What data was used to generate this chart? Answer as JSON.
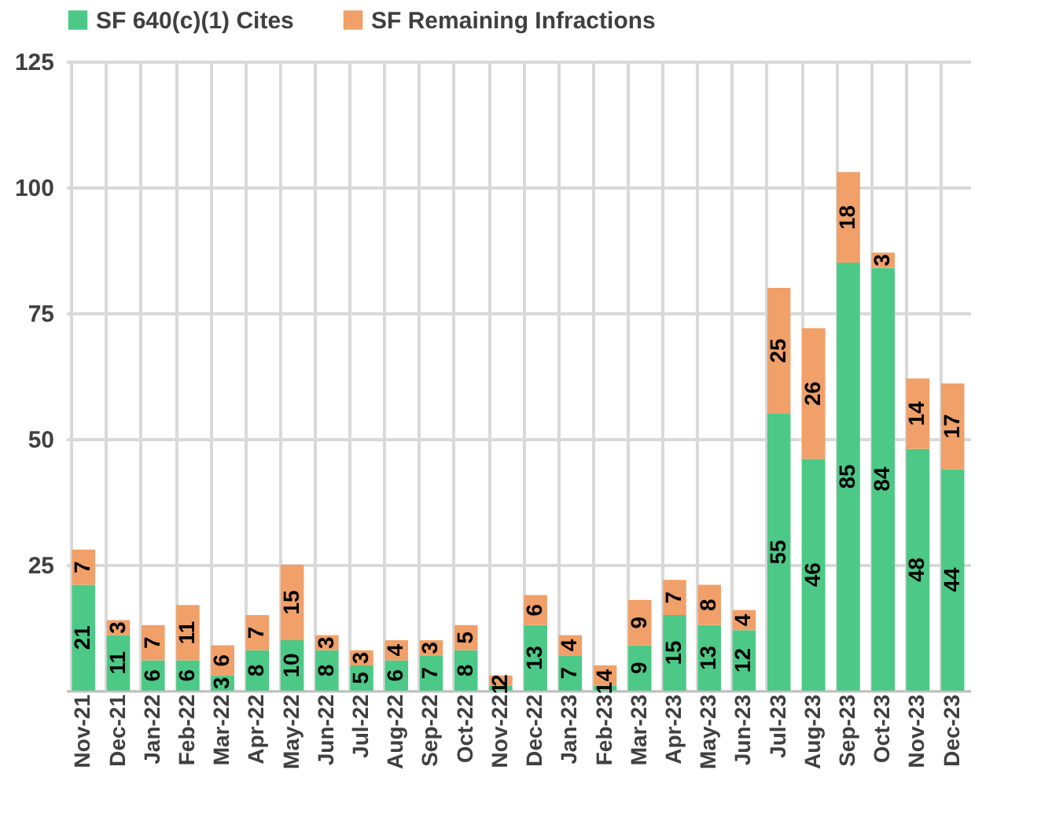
{
  "chart_data": {
    "type": "bar",
    "stacked": true,
    "categories": [
      "Nov-21",
      "Dec-21",
      "Jan-22",
      "Feb-22",
      "Mar-22",
      "Apr-22",
      "May-22",
      "Jun-22",
      "Jul-22",
      "Aug-22",
      "Sep-22",
      "Oct-22",
      "Nov-22",
      "Dec-22",
      "Jan-23",
      "Feb-23",
      "Mar-23",
      "Apr-23",
      "May-23",
      "Jun-23",
      "Jul-23",
      "Aug-23",
      "Sep-23",
      "Oct-23",
      "Nov-23",
      "Dec-23"
    ],
    "series": [
      {
        "name": "SF 640(c)(1) Cites",
        "color": "#4dc987",
        "values": [
          21,
          11,
          6,
          6,
          3,
          8,
          10,
          8,
          5,
          6,
          7,
          8,
          1,
          13,
          7,
          1,
          9,
          15,
          13,
          12,
          55,
          46,
          85,
          84,
          48,
          44
        ]
      },
      {
        "name": "SF Remaining Infractions",
        "color": "#f0a068",
        "values": [
          7,
          3,
          7,
          11,
          6,
          7,
          15,
          3,
          3,
          4,
          3,
          5,
          2,
          6,
          4,
          4,
          9,
          7,
          8,
          4,
          25,
          26,
          18,
          3,
          14,
          17
        ]
      }
    ],
    "ylim": [
      0,
      125
    ],
    "yticks": [
      {
        "value": 0,
        "label": null
      },
      25,
      50,
      75,
      100,
      125
    ],
    "grid": true,
    "legend": "top",
    "data_labels": true
  }
}
